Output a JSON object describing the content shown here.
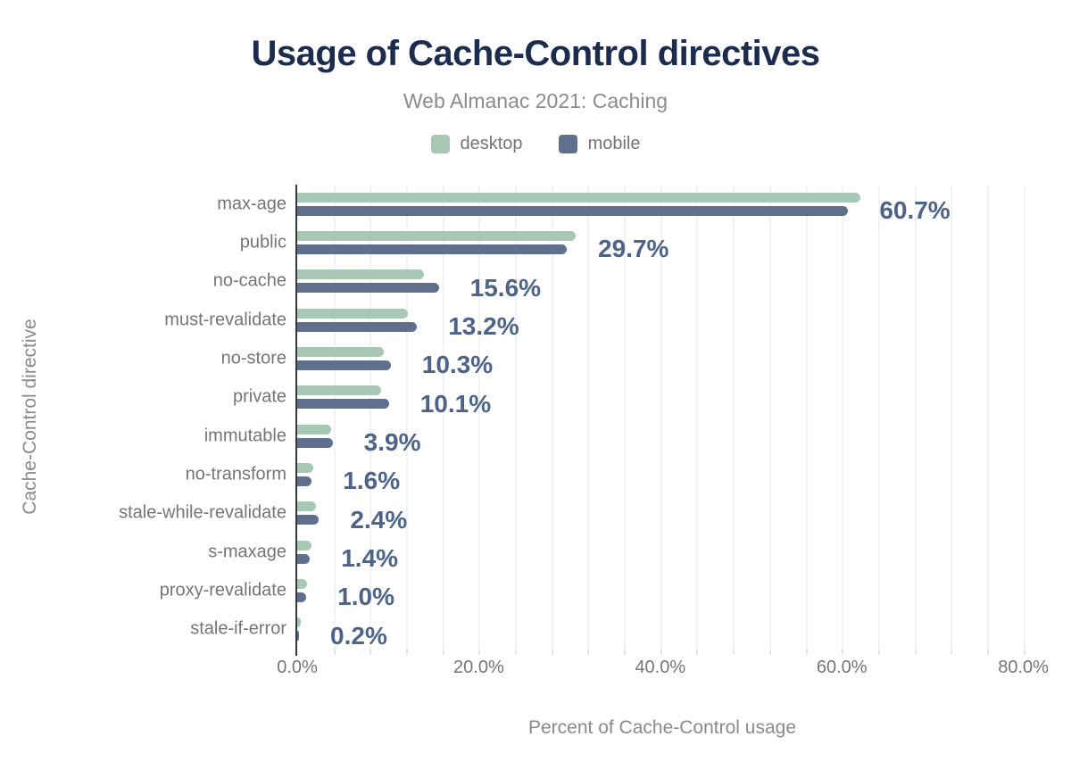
{
  "header": {
    "title": "Usage of Cache-Control directives",
    "subtitle": "Web Almanac 2021: Caching"
  },
  "legend": [
    {
      "label": "desktop",
      "color": "#a7c8b5"
    },
    {
      "label": "mobile",
      "color": "#5e708d"
    }
  ],
  "chart_data": {
    "type": "bar",
    "orientation": "horizontal",
    "title": "Usage of Cache-Control directives",
    "subtitle": "Web Almanac 2021: Caching",
    "xlabel": "Percent of Cache-Control usage",
    "ylabel": "Cache-Control directive",
    "xlim": [
      0,
      80.4
    ],
    "x_ticks": [
      "0.0%",
      "20.0%",
      "40.0%",
      "60.0%",
      "80.0%"
    ],
    "x_tick_values": [
      0,
      20,
      40,
      60,
      80
    ],
    "minor_grid_step_percent": 4,
    "grid": "vertical-minor",
    "legend_position": "top",
    "categories": [
      "max-age",
      "public",
      "no-cache",
      "must-revalidate",
      "no-store",
      "private",
      "immutable",
      "no-transform",
      "stale-while-revalidate",
      "s-maxage",
      "proxy-revalidate",
      "stale-if-error"
    ],
    "series": [
      {
        "name": "desktop",
        "color": "#a7c8b5",
        "values": [
          62.0,
          30.7,
          14.0,
          12.2,
          9.5,
          9.2,
          3.7,
          1.8,
          2.1,
          1.6,
          1.1,
          0.4
        ]
      },
      {
        "name": "mobile",
        "color": "#5e708d",
        "values": [
          60.7,
          29.7,
          15.6,
          13.2,
          10.3,
          10.1,
          3.9,
          1.6,
          2.4,
          1.4,
          1.0,
          0.2
        ]
      }
    ],
    "value_labels": [
      "60.7%",
      "29.7%",
      "15.6%",
      "13.2%",
      "10.3%",
      "10.1%",
      "3.9%",
      "1.6%",
      "2.4%",
      "1.4%",
      "1.0%",
      "0.2%"
    ],
    "value_label_series": "mobile",
    "value_label_color": "#4d6387"
  },
  "style": {
    "title_color": "#1b2c4e",
    "subtitle_color": "#8b8b8b",
    "axis_text_color": "#757575",
    "axis_line_color": "#33393f",
    "gridline_color": "#f1f3f5"
  }
}
